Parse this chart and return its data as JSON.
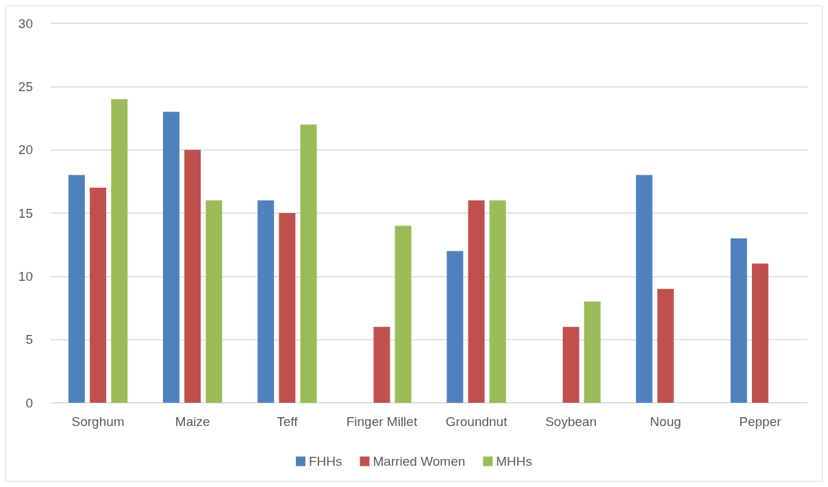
{
  "chart_data": {
    "type": "bar",
    "categories": [
      "Sorghum",
      "Maize",
      "Teff",
      "Finger Millet",
      "Groundnut",
      "Soybean",
      "Noug",
      "Pepper"
    ],
    "series": [
      {
        "name": "FHHs",
        "color": "#4f81bd",
        "values": [
          18,
          23,
          16,
          null,
          12,
          null,
          18,
          13
        ]
      },
      {
        "name": "Married Women",
        "color": "#c0504d",
        "values": [
          17,
          20,
          15,
          6,
          16,
          6,
          9,
          11
        ]
      },
      {
        "name": "MHHs",
        "color": "#9bbb59",
        "values": [
          24,
          16,
          22,
          14,
          16,
          8,
          null,
          null
        ]
      }
    ],
    "ylim": [
      0,
      30
    ],
    "yticks": [
      0,
      5,
      10,
      15,
      20,
      25,
      30
    ],
    "grid": "y",
    "legend": "bottom"
  }
}
